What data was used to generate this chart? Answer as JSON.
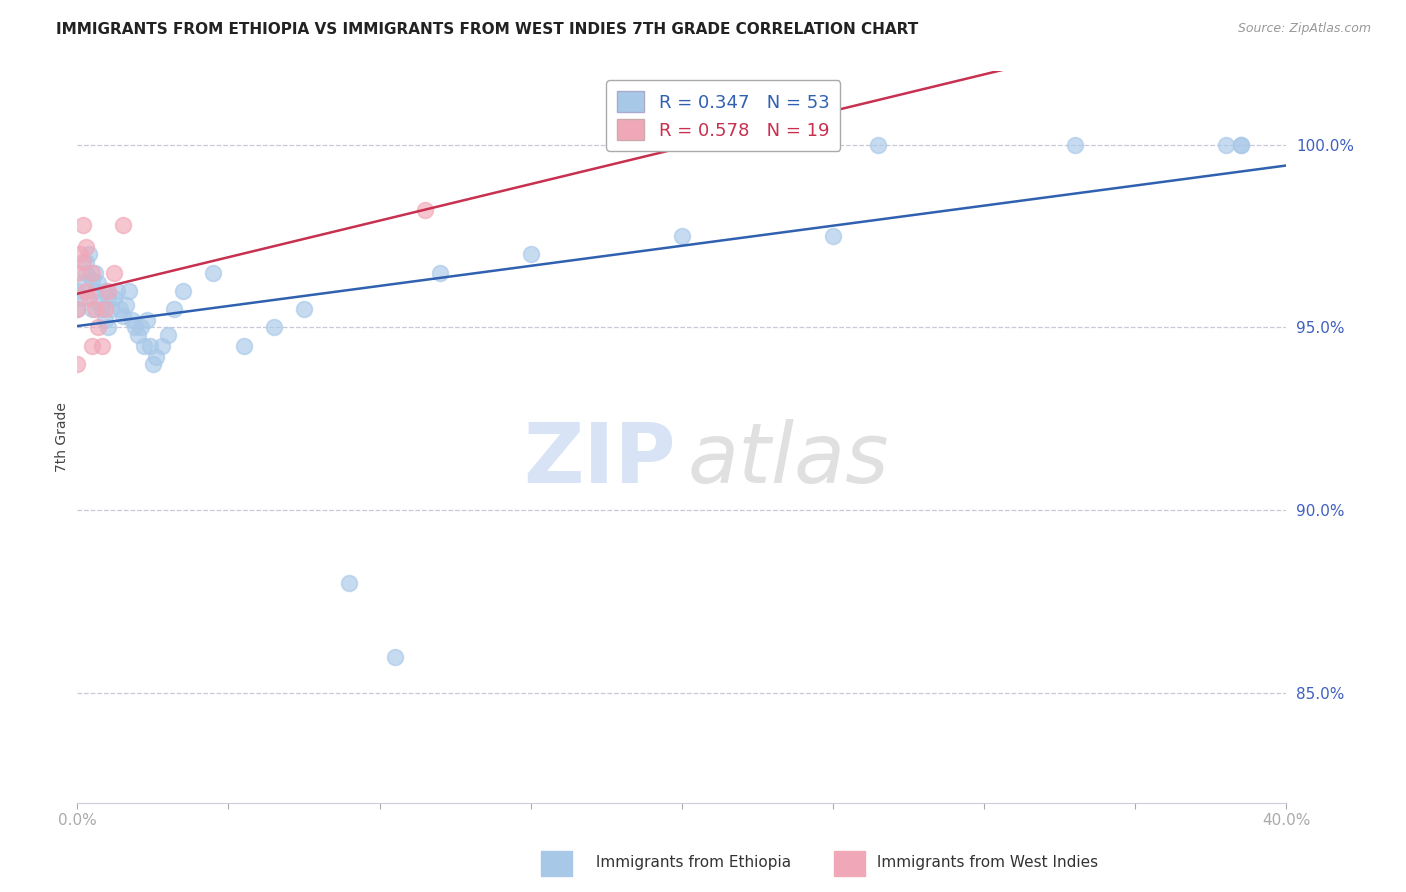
{
  "title": "IMMIGRANTS FROM ETHIOPIA VS IMMIGRANTS FROM WEST INDIES 7TH GRADE CORRELATION CHART",
  "source": "Source: ZipAtlas.com",
  "ylabel_left": "7th Grade",
  "blue_R": 0.347,
  "blue_N": 53,
  "pink_R": 0.578,
  "pink_N": 19,
  "blue_color": "#a8c8e8",
  "pink_color": "#f0a8b8",
  "blue_line_color": "#3060b0",
  "pink_line_color": "#c83050",
  "legend_blue": "Immigrants from Ethiopia",
  "legend_pink": "Immigrants from West Indies",
  "axis_color": "#4060c0",
  "grid_color": "#c8c8d8",
  "x_min": 0.0,
  "x_max": 40.0,
  "y_min": 82.0,
  "y_max": 102.0,
  "yticks": [
    85,
    90,
    95,
    100
  ],
  "blue_x": [
    0.0,
    0.0,
    0.1,
    0.2,
    0.3,
    0.3,
    0.4,
    0.5,
    0.5,
    0.6,
    0.6,
    0.7,
    0.7,
    0.8,
    0.9,
    0.9,
    1.0,
    1.0,
    1.1,
    1.2,
    1.3,
    1.4,
    1.5,
    1.6,
    1.7,
    1.8,
    1.9,
    2.0,
    2.1,
    2.2,
    2.3,
    2.4,
    2.5,
    2.6,
    2.8,
    3.0,
    3.2,
    3.5,
    4.5,
    5.5,
    6.5,
    7.5,
    9.0,
    10.5,
    12.0,
    15.0,
    20.0,
    26.5,
    33.0,
    38.5,
    38.5,
    38.0,
    25.0
  ],
  "blue_y": [
    95.5,
    96.0,
    95.8,
    96.2,
    96.5,
    96.8,
    97.0,
    96.3,
    95.5,
    96.5,
    96.0,
    95.7,
    96.2,
    95.5,
    96.0,
    95.2,
    95.8,
    95.0,
    95.5,
    95.8,
    96.0,
    95.5,
    95.3,
    95.6,
    96.0,
    95.2,
    95.0,
    94.8,
    95.0,
    94.5,
    95.2,
    94.5,
    94.0,
    94.2,
    94.5,
    94.8,
    95.5,
    96.0,
    96.5,
    94.5,
    95.0,
    95.5,
    88.0,
    86.0,
    96.5,
    97.0,
    97.5,
    100.0,
    100.0,
    100.0,
    100.0,
    100.0,
    97.5
  ],
  "pink_x": [
    0.0,
    0.0,
    0.0,
    0.1,
    0.2,
    0.2,
    0.3,
    0.3,
    0.4,
    0.5,
    0.5,
    0.6,
    0.7,
    0.8,
    0.9,
    1.0,
    1.2,
    1.5,
    11.5
  ],
  "pink_y": [
    94.0,
    95.5,
    96.5,
    97.0,
    97.8,
    96.8,
    97.2,
    96.0,
    95.8,
    96.5,
    94.5,
    95.5,
    95.0,
    94.5,
    95.5,
    96.0,
    96.5,
    97.8,
    98.2
  ]
}
